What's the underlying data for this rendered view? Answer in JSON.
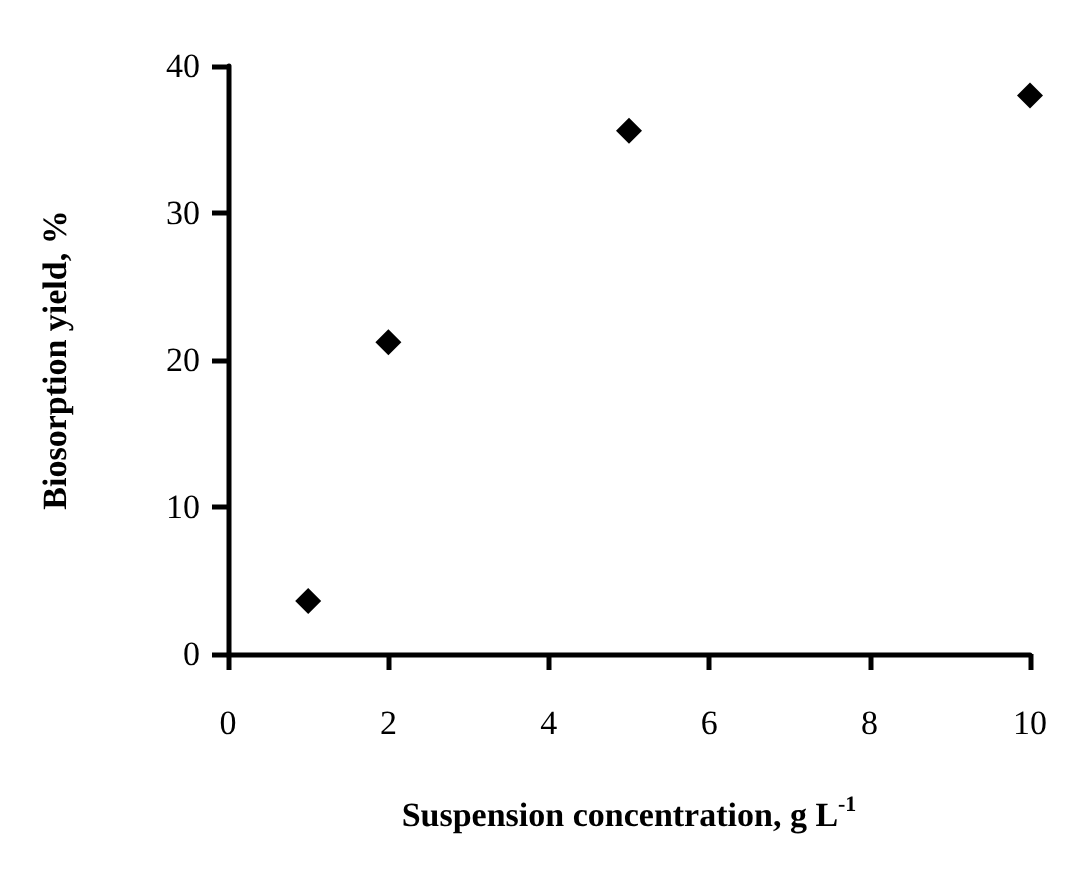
{
  "chart_data": {
    "type": "scatter",
    "xlabel": "Suspension concentration, g L$^{-1}$",
    "ylabel": "Biosorption yield, %",
    "x": [
      1,
      2,
      5,
      10
    ],
    "series": [
      {
        "color": "#000000",
        "values": [
          3.6,
          21.2,
          35.6,
          38
        ]
      }
    ],
    "xlim": [
      0,
      10
    ],
    "xticks": [
      0,
      2,
      4,
      6,
      8,
      10
    ],
    "ylim": [
      0,
      40
    ],
    "yticks": [
      0,
      10,
      20,
      30,
      40
    ],
    "grid": false,
    "marker": "diamond"
  }
}
